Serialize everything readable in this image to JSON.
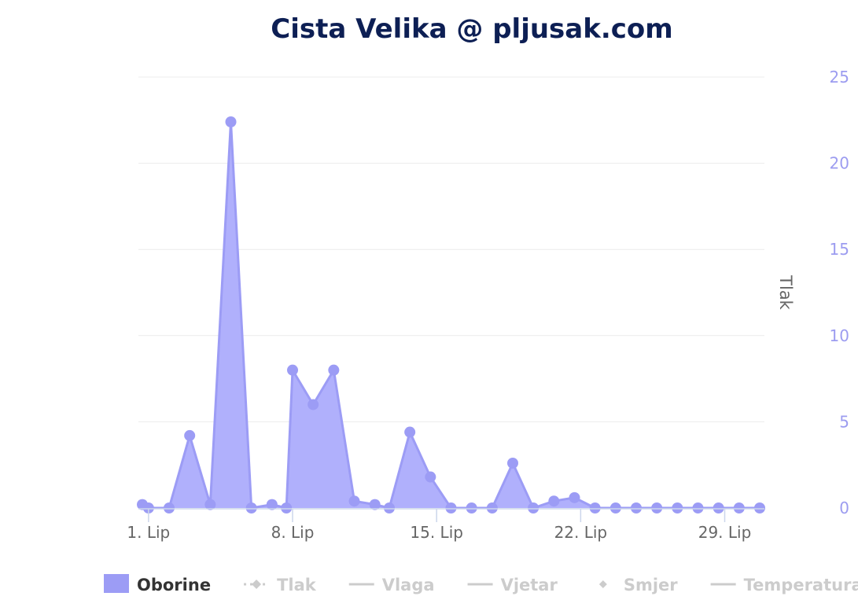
{
  "chart_data": {
    "type": "area",
    "title": "Cista Velika @ pljusak.com",
    "y_axis_title": "Tlak",
    "ylim": [
      0,
      25
    ],
    "y_ticks": [
      "0",
      "5",
      "10",
      "15",
      "20",
      "25"
    ],
    "x_ticks": [
      {
        "day": 1,
        "label": "1. Lip"
      },
      {
        "day": 8,
        "label": "8. Lip"
      },
      {
        "day": 15,
        "label": "15. Lip"
      },
      {
        "day": 22,
        "label": "22. Lip"
      },
      {
        "day": 29,
        "label": "29. Lip"
      }
    ],
    "grid": true,
    "legend_position": "bottom",
    "series": [
      {
        "name": "Oborine",
        "color": "#9c9cf5",
        "visible": true,
        "x": [
          0.7,
          1,
          2,
          3,
          4,
          5,
          6,
          7,
          7.7,
          8,
          9,
          10,
          11,
          12,
          12.7,
          13.7,
          14.7,
          15.7,
          16.7,
          17.7,
          18.7,
          19.7,
          20.7,
          21.7,
          22.7,
          23.7,
          24.7,
          25.7,
          26.7,
          27.7,
          28.7,
          29.7,
          30.7
        ],
        "values": [
          0.2,
          0.0,
          0.0,
          4.2,
          0.2,
          22.4,
          0.0,
          0.2,
          0.0,
          8.0,
          6.0,
          8.0,
          0.4,
          0.2,
          0.0,
          4.4,
          1.8,
          0.0,
          0.0,
          0.0,
          2.6,
          0.0,
          0.4,
          0.6,
          0.0,
          0.0,
          0.0,
          0.0,
          0.0,
          0.0,
          0.0,
          0.0,
          0.0
        ]
      }
    ],
    "legend": [
      {
        "name": "Oborine",
        "symbol": "area",
        "active": true,
        "color": "#9c9cf5"
      },
      {
        "name": "Tlak",
        "symbol": "diamond-line",
        "active": false,
        "color": "#cccccc"
      },
      {
        "name": "Vlaga",
        "symbol": "line",
        "active": false,
        "color": "#cccccc"
      },
      {
        "name": "Vjetar",
        "symbol": "line",
        "active": false,
        "color": "#cccccc"
      },
      {
        "name": "Smjer",
        "symbol": "diamond",
        "active": false,
        "color": "#cccccc"
      },
      {
        "name": "Temperatura",
        "symbol": "line",
        "active": false,
        "color": "#cccccc"
      }
    ]
  }
}
